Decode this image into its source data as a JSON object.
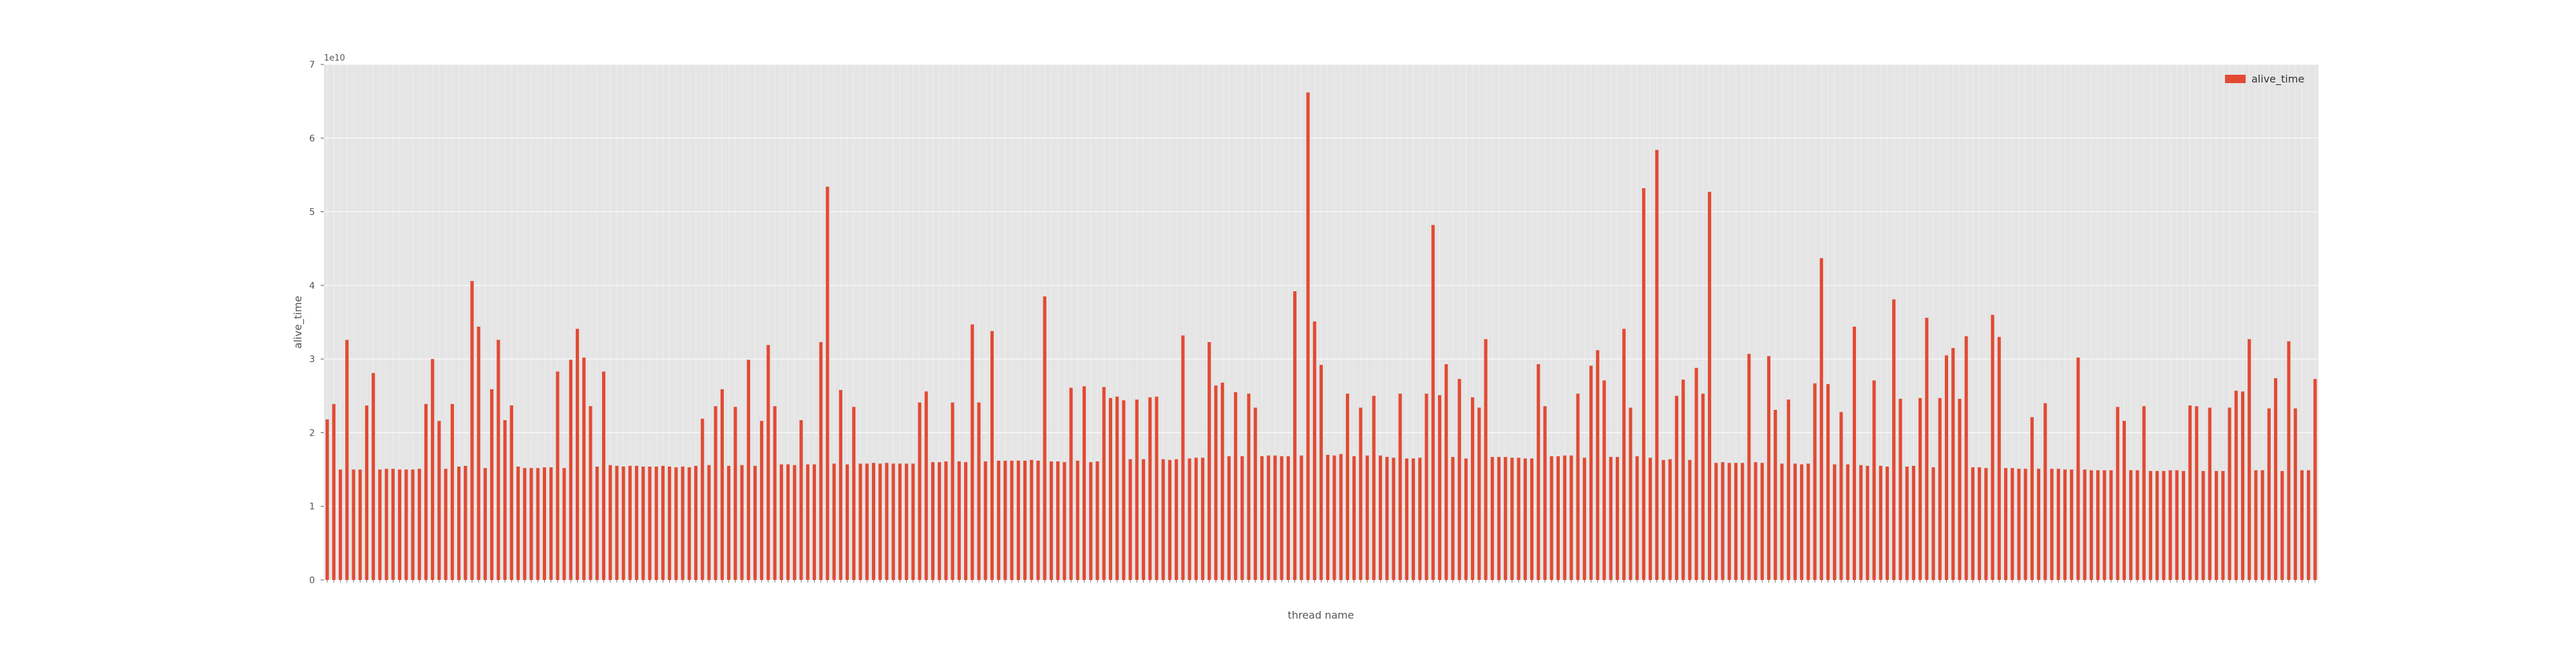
{
  "chart_data": {
    "type": "bar",
    "xlabel": "thread name",
    "ylabel": "alive_time",
    "y_multiplier_label": "1e10",
    "ylim": [
      0,
      7
    ],
    "yticks": [
      0,
      1,
      2,
      3,
      4,
      5,
      6,
      7
    ],
    "grid": true,
    "legend_position": "top-right",
    "series": [
      {
        "name": "alive_time",
        "color": "#E24A33",
        "values": [
          2.18,
          2.39,
          1.5,
          3.26,
          1.5,
          1.5,
          2.37,
          2.81,
          1.5,
          1.51,
          1.51,
          1.5,
          1.5,
          1.5,
          1.51,
          2.39,
          3.0,
          2.16,
          1.51,
          2.39,
          1.54,
          1.55,
          4.06,
          3.44,
          1.52,
          2.59,
          3.26,
          2.17,
          2.37,
          1.54,
          1.52,
          1.52,
          1.52,
          1.53,
          1.53,
          2.83,
          1.52,
          2.99,
          3.41,
          3.02,
          2.36,
          1.54,
          2.83,
          1.56,
          1.55,
          1.54,
          1.55,
          1.55,
          1.54,
          1.54,
          1.54,
          1.55,
          1.54,
          1.53,
          1.54,
          1.53,
          1.55,
          2.19,
          1.56,
          2.36,
          2.59,
          1.55,
          2.35,
          1.56,
          2.99,
          1.55,
          2.16,
          3.19,
          2.36,
          1.57,
          1.57,
          1.56,
          2.17,
          1.57,
          1.57,
          3.23,
          5.34,
          1.58,
          2.58,
          1.57,
          2.35,
          1.58,
          1.58,
          1.59,
          1.58,
          1.59,
          1.58,
          1.58,
          1.58,
          1.58,
          2.41,
          2.56,
          1.6,
          1.6,
          1.61,
          2.41,
          1.61,
          1.6,
          3.47,
          2.41,
          1.61,
          3.38,
          1.62,
          1.62,
          1.62,
          1.62,
          1.62,
          1.63,
          1.62,
          3.85,
          1.61,
          1.61,
          1.6,
          2.61,
          1.62,
          2.63,
          1.6,
          1.61,
          2.62,
          2.47,
          2.49,
          2.44,
          1.64,
          2.45,
          1.64,
          2.48,
          2.49,
          1.64,
          1.63,
          1.64,
          3.32,
          1.65,
          1.66,
          1.66,
          3.23,
          2.64,
          2.68,
          1.68,
          2.55,
          1.68,
          2.53,
          2.34,
          1.68,
          1.69,
          1.69,
          1.68,
          1.68,
          3.92,
          1.69,
          6.62,
          3.51,
          2.92,
          1.7,
          1.69,
          1.71,
          2.53,
          1.68,
          2.34,
          1.69,
          2.5,
          1.69,
          1.67,
          1.66,
          2.53,
          1.65,
          1.65,
          1.66,
          2.53,
          4.82,
          2.51,
          2.93,
          1.67,
          2.73,
          1.65,
          2.48,
          2.34,
          3.27,
          1.67,
          1.67,
          1.67,
          1.66,
          1.66,
          1.65,
          1.65,
          2.93,
          2.36,
          1.68,
          1.68,
          1.69,
          1.69,
          2.53,
          1.66,
          2.91,
          3.12,
          2.71,
          1.67,
          1.67,
          3.41,
          2.34,
          1.68,
          5.32,
          1.66,
          5.84,
          1.63,
          1.64,
          2.5,
          2.72,
          1.63,
          2.88,
          2.53,
          5.27,
          1.59,
          1.6,
          1.59,
          1.59,
          1.59,
          3.07,
          1.6,
          1.59,
          3.04,
          2.31,
          1.58,
          2.45,
          1.58,
          1.57,
          1.58,
          2.67,
          4.37,
          2.66,
          1.57,
          2.28,
          1.57,
          3.44,
          1.56,
          1.55,
          2.71,
          1.55,
          1.54,
          3.81,
          2.46,
          1.54,
          1.55,
          2.47,
          3.56,
          1.53,
          2.47,
          3.05,
          3.15,
          2.46,
          3.31,
          1.53,
          1.53,
          1.52,
          3.6,
          3.3,
          1.52,
          1.52,
          1.51,
          1.51,
          2.21,
          1.51,
          2.4,
          1.51,
          1.51,
          1.5,
          1.5,
          3.02,
          1.5,
          1.49,
          1.49,
          1.49,
          1.49,
          2.35,
          2.16,
          1.49,
          1.49,
          2.36,
          1.48,
          1.48,
          1.48,
          1.49,
          1.49,
          1.48,
          2.37,
          2.36,
          1.48,
          2.34,
          1.48,
          1.48,
          2.34,
          2.57,
          2.56,
          3.27,
          1.49,
          1.49,
          2.33,
          2.74,
          1.48,
          3.24,
          2.33,
          1.49,
          1.49,
          2.73
        ]
      }
    ]
  }
}
